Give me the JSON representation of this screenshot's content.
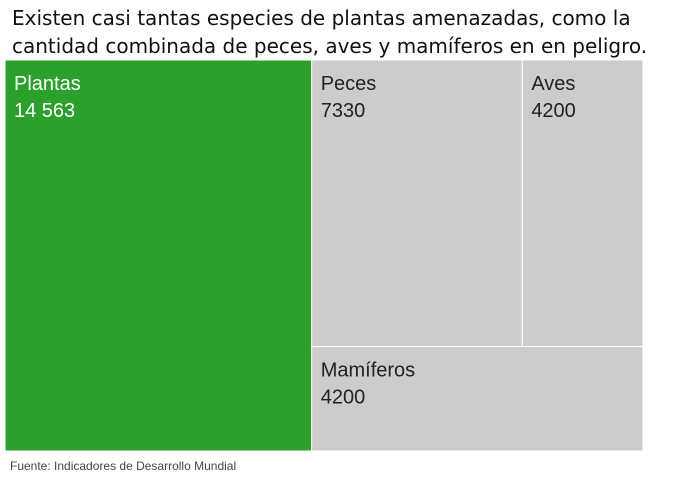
{
  "title_lines": [
    "Existen casi tantas especies de plantas amenazadas, como la",
    "cantidad combinada de peces, aves y mamíferos en en peligro."
  ],
  "source": "Fuente: Indicadores de Desarrollo Mundial",
  "colors": {
    "highlight": "#2ca02c",
    "other": "#cccccc",
    "highlight_text": "#ffffff",
    "other_text": "#222222",
    "tile_border": "#ffffff"
  },
  "chart_data": {
    "type": "treemap",
    "items": [
      {
        "name": "Plantas",
        "value_label": "14 563",
        "value": 14563,
        "highlight": true
      },
      {
        "name": "Peces",
        "value_label": "7330",
        "value": 7330,
        "highlight": false
      },
      {
        "name": "Aves",
        "value_label": "4200",
        "value": 4200,
        "highlight": false
      },
      {
        "name": "Mamíferos",
        "value_label": "4200",
        "value": 4200,
        "highlight": false
      }
    ]
  }
}
